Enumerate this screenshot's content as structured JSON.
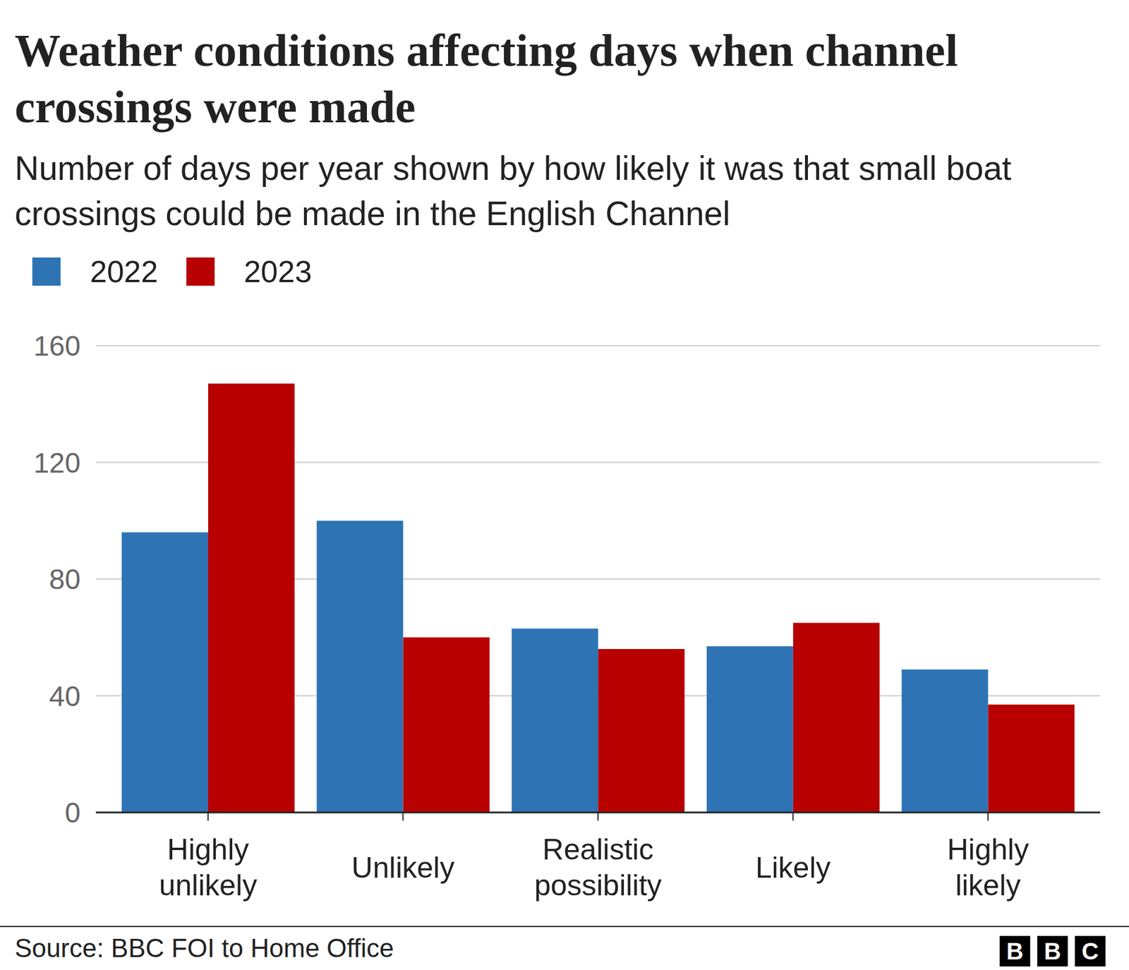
{
  "chart_data": {
    "type": "bar",
    "title": "Weather conditions affecting days when channel crossings were made",
    "subtitle": "Number of days per year shown by how likely it was that small boat crossings could be made in the English Channel",
    "categories": [
      "Highly unlikely",
      "Unlikely",
      "Realistic possibility",
      "Likely",
      "Highly likely"
    ],
    "series": [
      {
        "name": "2022",
        "color": "#2e74b5",
        "values": [
          96,
          100,
          63,
          57,
          49
        ]
      },
      {
        "name": "2023",
        "color": "#b80000",
        "values": [
          147,
          60,
          56,
          65,
          37
        ]
      }
    ],
    "ylim": [
      0,
      160
    ],
    "yticks": [
      0,
      40,
      80,
      120,
      160
    ],
    "grid": true,
    "legend": "top left",
    "source": "Source: BBC FOI to Home Office",
    "logo": "BBC"
  }
}
